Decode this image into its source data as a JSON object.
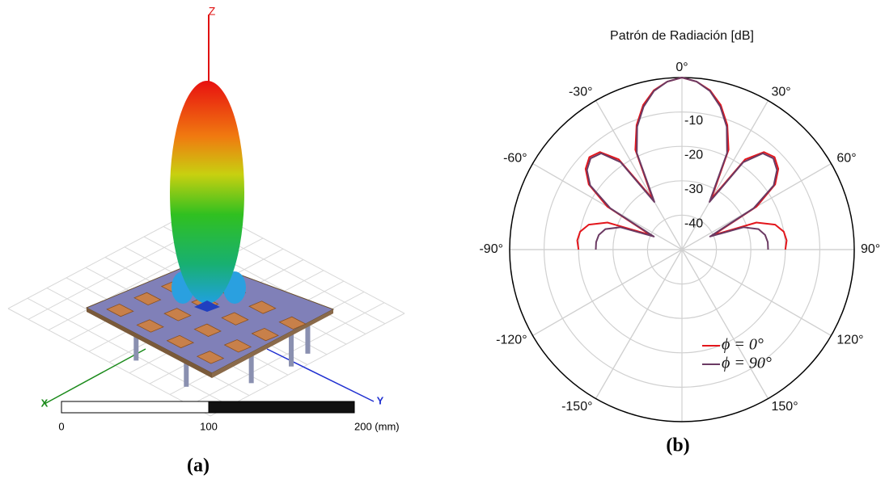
{
  "figure_a": {
    "axes": {
      "z": "Z",
      "x": "X",
      "y": "Y"
    },
    "scale_bar": [
      "0",
      "100",
      "200 (mm)"
    ],
    "caption": "(a)"
  },
  "chart_data": {
    "type": "polar",
    "title": "Patrón de Radiación [dB]",
    "caption": "(b)",
    "theta": [
      -90,
      -85,
      -80,
      -75,
      -70,
      -65,
      -60,
      -55,
      -50,
      -45,
      -40,
      -35,
      -30,
      -25,
      -20,
      -15,
      -10,
      -5,
      0,
      5,
      10,
      15,
      20,
      25,
      30,
      35,
      40,
      45,
      50,
      55,
      60,
      65,
      70,
      75,
      80,
      85,
      90
    ],
    "thetaticks": [
      {
        "value": 0,
        "label": "0°"
      },
      {
        "value": 30,
        "label": "30°"
      },
      {
        "value": 60,
        "label": "60°"
      },
      {
        "value": 90,
        "label": "90°"
      },
      {
        "value": 120,
        "label": "120°"
      },
      {
        "value": 150,
        "label": "150°"
      },
      {
        "value": -150,
        "label": "-150°"
      },
      {
        "value": -120,
        "label": "-120°"
      },
      {
        "value": -90,
        "label": "-90°"
      },
      {
        "value": -60,
        "label": "-60°"
      },
      {
        "value": -30,
        "label": "-30°"
      }
    ],
    "rlim": [
      -50,
      0
    ],
    "rticks": [
      -40,
      -30,
      -20,
      -10
    ],
    "grid": true,
    "legend": "lower right",
    "series": [
      {
        "name": "ϕ = 0°",
        "color": "#e3161c",
        "values": [
          -20,
          -19.5,
          -20,
          -22,
          -27,
          -40,
          -25,
          -17,
          -13.5,
          -12,
          -13,
          -18,
          -33,
          -18,
          -11.5,
          -6.5,
          -3,
          -1,
          0,
          -1,
          -3,
          -6.5,
          -11.5,
          -18,
          -33,
          -18,
          -13,
          -12,
          -13.5,
          -17,
          -25,
          -40,
          -27,
          -22,
          -20,
          -19.5,
          -20
        ]
      },
      {
        "name": "ϕ = 90°",
        "color": "#6b3a63",
        "values": [
          -25,
          -25,
          -25.5,
          -27,
          -31,
          -41,
          -26,
          -17.5,
          -14,
          -12.5,
          -13.5,
          -19,
          -34,
          -19,
          -12,
          -7,
          -3.2,
          -1,
          0,
          -1,
          -3.2,
          -7,
          -12,
          -19,
          -34,
          -19,
          -13.5,
          -12.5,
          -14,
          -17.5,
          -26,
          -41,
          -31,
          -27,
          -25.5,
          -25,
          -25
        ]
      }
    ]
  }
}
